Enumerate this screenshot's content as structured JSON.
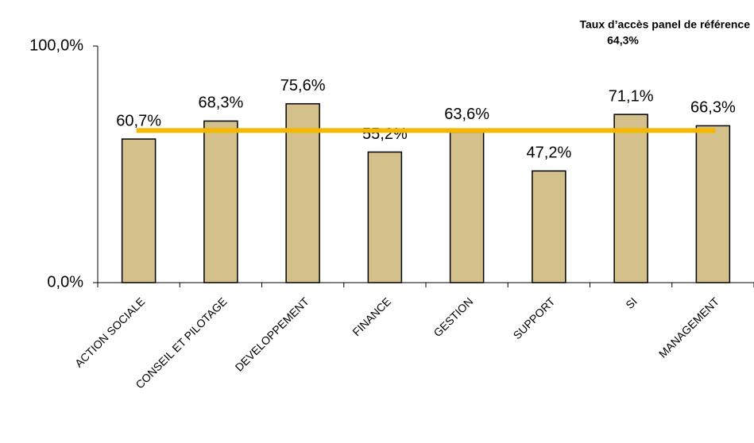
{
  "chart_data": {
    "type": "bar",
    "categories": [
      "ACTION SOCIALE",
      "CONSEIL ET PILOTAGE",
      "DEVELOPPEMENT",
      "FINANCE",
      "GESTION",
      "SUPPORT",
      "SI",
      "MANAGEMENT"
    ],
    "values": [
      60.7,
      68.3,
      75.6,
      55.2,
      63.6,
      47.2,
      71.1,
      66.3
    ],
    "value_labels": [
      "60,7%",
      "68,3%",
      "75,6%",
      "55,2%",
      "63,6%",
      "47,2%",
      "71,1%",
      "66,3%"
    ],
    "color": "#d4c08b",
    "ylim": [
      0,
      100
    ],
    "yticks": [
      {
        "value": 0,
        "label": "0,0%"
      },
      {
        "value": 100,
        "label": "100,0%"
      }
    ],
    "reference": {
      "name": "Taux d’accès panel de référence",
      "value": 64.3,
      "value_label": "64,3%",
      "color": "#f5b800",
      "label_color": "#f07f09"
    }
  }
}
